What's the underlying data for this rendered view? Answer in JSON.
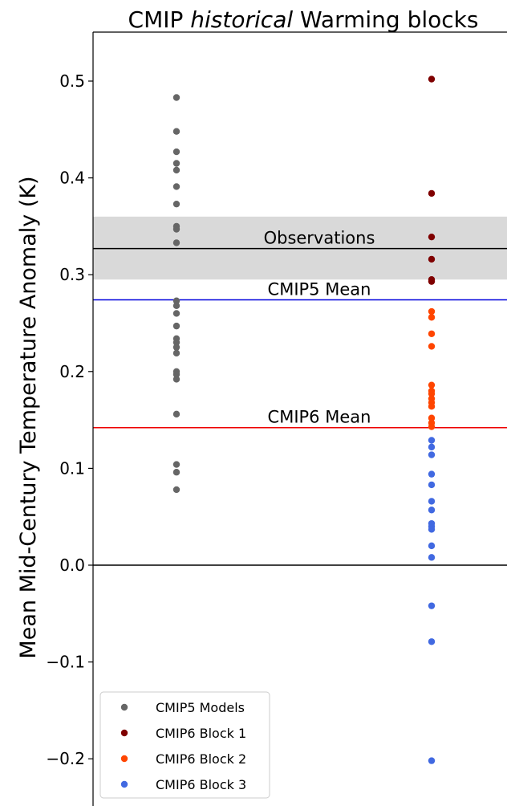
{
  "chart_data": {
    "type": "scatter",
    "title_parts": [
      "CMIP ",
      "historical",
      " Warming blocks"
    ],
    "title": "CMIP historical Warming blocks",
    "xlabel": "",
    "ylabel": "Mean Mid-Century Temperature Anomaly (K)",
    "ylim": [
      -0.25,
      0.55
    ],
    "yticks": [
      -0.2,
      -0.1,
      0.0,
      0.1,
      0.2,
      0.3,
      0.4,
      0.5
    ],
    "ytick_labels": [
      "−0.2",
      "−0.1",
      "0.0",
      "0.1",
      "0.2",
      "0.3",
      "0.4",
      "0.5"
    ],
    "grid": false,
    "legend_position": "lower-left",
    "observation_band": [
      0.295,
      0.36
    ],
    "reference_lines": [
      {
        "name": "Observations",
        "value": 0.327,
        "color": "#000000"
      },
      {
        "name": "CMIP5 Mean",
        "value": 0.274,
        "color": "#0000dd"
      },
      {
        "name": "CMIP6 Mean",
        "value": 0.142,
        "color": "#ee0000"
      },
      {
        "name": "zero",
        "value": 0.0,
        "color": "#000000"
      }
    ],
    "annotations": [
      "Observations",
      "CMIP5 Mean",
      "CMIP6 Mean"
    ],
    "series": [
      {
        "name": "CMIP5 Models",
        "color": "#666666",
        "column": "left",
        "values": [
          0.483,
          0.448,
          0.427,
          0.415,
          0.408,
          0.391,
          0.373,
          0.35,
          0.347,
          0.333,
          0.273,
          0.268,
          0.26,
          0.247,
          0.234,
          0.23,
          0.225,
          0.219,
          0.2,
          0.197,
          0.192,
          0.156,
          0.104,
          0.096,
          0.078
        ]
      },
      {
        "name": "CMIP6 Block 1",
        "color": "#7f0000",
        "column": "right",
        "values": [
          0.502,
          0.384,
          0.339,
          0.316,
          0.295,
          0.293
        ]
      },
      {
        "name": "CMIP6 Block 2",
        "color": "#ff4500",
        "column": "right",
        "values": [
          0.262,
          0.256,
          0.239,
          0.226,
          0.186,
          0.18,
          0.177,
          0.172,
          0.168,
          0.164,
          0.152,
          0.147,
          0.143
        ]
      },
      {
        "name": "CMIP6 Block 3",
        "color": "#4169e1",
        "column": "right",
        "values": [
          0.129,
          0.122,
          0.114,
          0.094,
          0.083,
          0.066,
          0.057,
          0.043,
          0.04,
          0.037,
          0.02,
          0.008,
          -0.042,
          -0.079,
          -0.202
        ]
      }
    ]
  }
}
